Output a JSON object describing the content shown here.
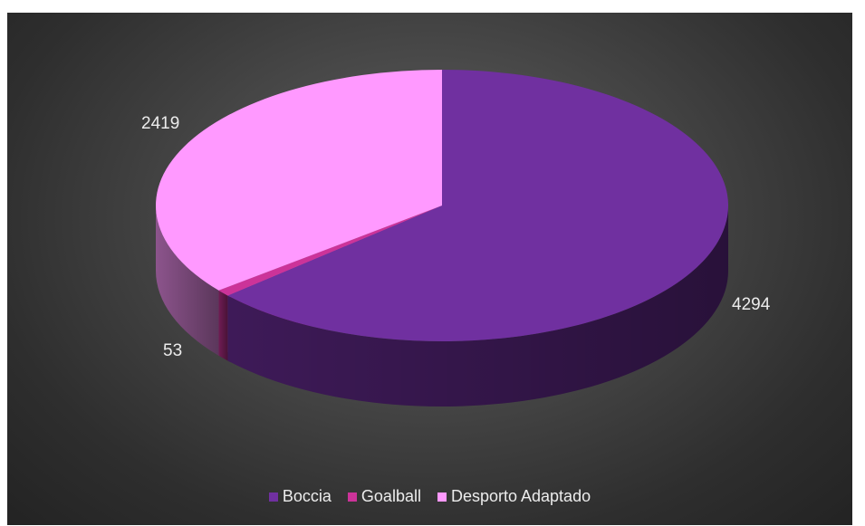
{
  "chart_data": {
    "type": "pie",
    "style": "3d",
    "categories": [
      "Boccia",
      "Goalball",
      "Desporto Adaptado"
    ],
    "values": [
      4294,
      53,
      2419
    ],
    "colors": [
      "#7030a0",
      "#cc3399",
      "#ff99ff"
    ],
    "data_labels": [
      "4294",
      "53",
      "2419"
    ],
    "title": "",
    "legend_position": "bottom",
    "legend": [
      "Boccia",
      "Goalball",
      "Desporto Adaptado"
    ]
  }
}
